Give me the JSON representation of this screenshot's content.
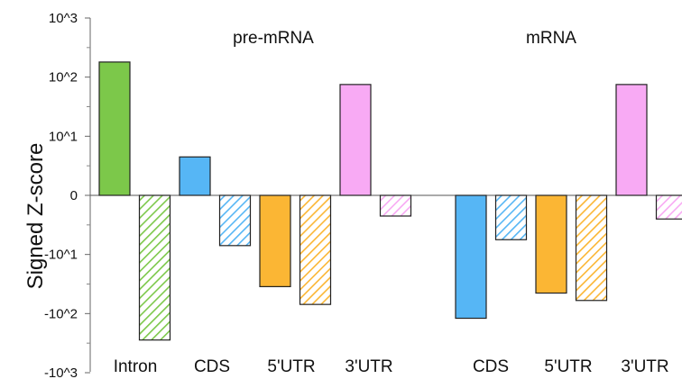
{
  "chart_data": {
    "type": "bar",
    "ylabel": "Signed Z-score",
    "yscale": "signed-log",
    "ylim": [
      -1000,
      1000
    ],
    "yticks": [
      "10^3",
      "10^2",
      "10^1",
      "0",
      "-10^1",
      "-10^2",
      "-10^3"
    ],
    "hatched_meaning": "not printed",
    "groups": [
      {
        "title": "pre-mRNA",
        "bars": [
          {
            "category": "Intron",
            "value": 180,
            "hatched": false,
            "color": "#7cc84a"
          },
          {
            "category": "Intron",
            "value": -280,
            "hatched": true,
            "color": "#7cc84a"
          },
          {
            "category": "CDS",
            "value": 6.5,
            "hatched": false,
            "color": "#56b6f5"
          },
          {
            "category": "CDS",
            "value": -8.5,
            "hatched": true,
            "color": "#56b6f5"
          },
          {
            "category": "5'UTR",
            "value": -35,
            "hatched": false,
            "color": "#fbb634"
          },
          {
            "category": "5'UTR",
            "value": -70,
            "hatched": true,
            "color": "#fbb634"
          },
          {
            "category": "3'UTR",
            "value": 75,
            "hatched": false,
            "color": "#f8aaf4"
          },
          {
            "category": "3'UTR",
            "value": -3.5,
            "hatched": true,
            "color": "#f8aaf4"
          }
        ],
        "category_labels": [
          "Intron",
          "CDS",
          "5'UTR",
          "3'UTR"
        ]
      },
      {
        "title": "mRNA",
        "bars": [
          {
            "category": "CDS",
            "value": -120,
            "hatched": false,
            "color": "#56b6f5"
          },
          {
            "category": "CDS",
            "value": -7.5,
            "hatched": true,
            "color": "#56b6f5"
          },
          {
            "category": "5'UTR",
            "value": -45,
            "hatched": false,
            "color": "#fbb634"
          },
          {
            "category": "5'UTR",
            "value": -60,
            "hatched": true,
            "color": "#fbb634"
          },
          {
            "category": "3'UTR",
            "value": 75,
            "hatched": false,
            "color": "#f8aaf4"
          },
          {
            "category": "3'UTR",
            "value": -4,
            "hatched": true,
            "color": "#f8aaf4"
          }
        ],
        "category_labels": [
          "CDS",
          "5'UTR",
          "3'UTR"
        ]
      }
    ]
  }
}
